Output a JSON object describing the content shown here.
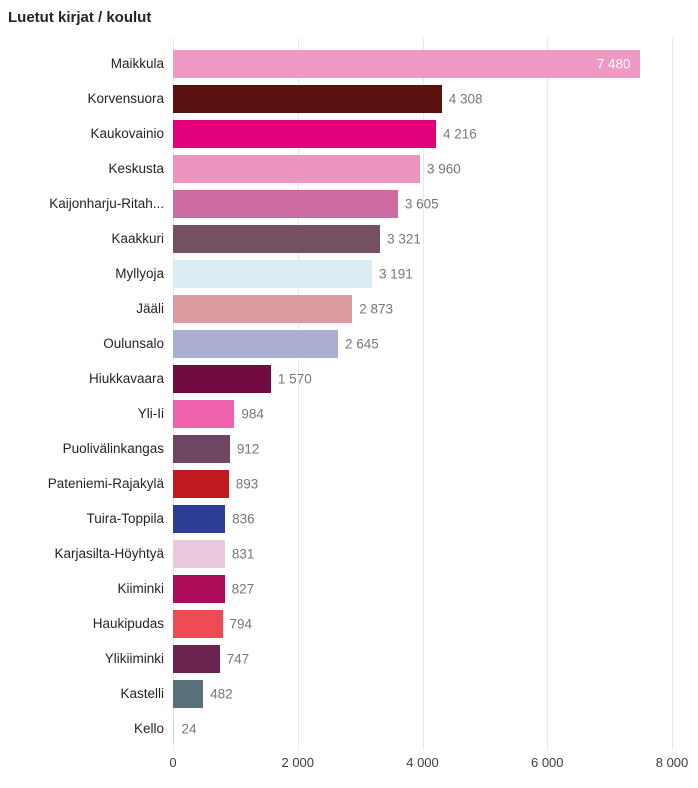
{
  "header": {
    "title": "Luetut kirjat / koulut"
  },
  "chart_data": {
    "type": "bar",
    "orientation": "horizontal",
    "title": "Luetut kirjat / koulut",
    "xlabel": "",
    "ylabel": "",
    "xlim": [
      0,
      8000
    ],
    "grid": true,
    "legend": "none",
    "categories": [
      "Maikkula",
      "Korvensuora",
      "Kaukovainio",
      "Keskusta",
      "Kaijonharju-Ritah...",
      "Kaakkuri",
      "Myllyoja",
      "Jääli",
      "Oulunsalo",
      "Hiukkavaara",
      "Yli-Ii",
      "Puolivälinkangas",
      "Pateniemi-Rajakylä",
      "Tuira-Toppila",
      "Karjasilta-Höyhtyä",
      "Kiiminki",
      "Haukipudas",
      "Ylikiiminki",
      "Kastelli",
      "Kello"
    ],
    "values": [
      7480,
      4308,
      4216,
      3960,
      3605,
      3321,
      3191,
      2873,
      2645,
      1570,
      984,
      912,
      893,
      836,
      831,
      827,
      794,
      747,
      482,
      24
    ],
    "value_labels": [
      "7 480",
      "4 308",
      "4 216",
      "3 960",
      "3 605",
      "3 321",
      "3 191",
      "2 873",
      "2 645",
      "1 570",
      "984",
      "912",
      "893",
      "836",
      "831",
      "827",
      "794",
      "747",
      "482",
      "24"
    ],
    "bar_colors": [
      "#ee9ac4",
      "#5b110e",
      "#e4007d",
      "#ec95bf",
      "#ce6ba3",
      "#745061",
      "#dcecf4",
      "#dc9aa1",
      "#a9aed2",
      "#730b43",
      "#ef63ad",
      "#6f4563",
      "#c21a20",
      "#2d3c94",
      "#ebc7dd",
      "#ad0a57",
      "#ef4b55",
      "#6b2450",
      "#587079",
      "#b8dde2"
    ],
    "x_ticks": [
      {
        "value": 0,
        "label": "0"
      },
      {
        "value": 2000,
        "label": "2 000"
      },
      {
        "value": 4000,
        "label": "4 000"
      },
      {
        "value": 6000,
        "label": "6 000"
      },
      {
        "value": 8000,
        "label": "8 000"
      }
    ]
  },
  "colors": {
    "title": "#252423",
    "category_label": "#252423",
    "value_label": "#777777",
    "value_label_inside": "#ffffff",
    "axis_label": "#3d3d3d",
    "gridline": "#e8e8e8",
    "background": "#ffffff"
  }
}
